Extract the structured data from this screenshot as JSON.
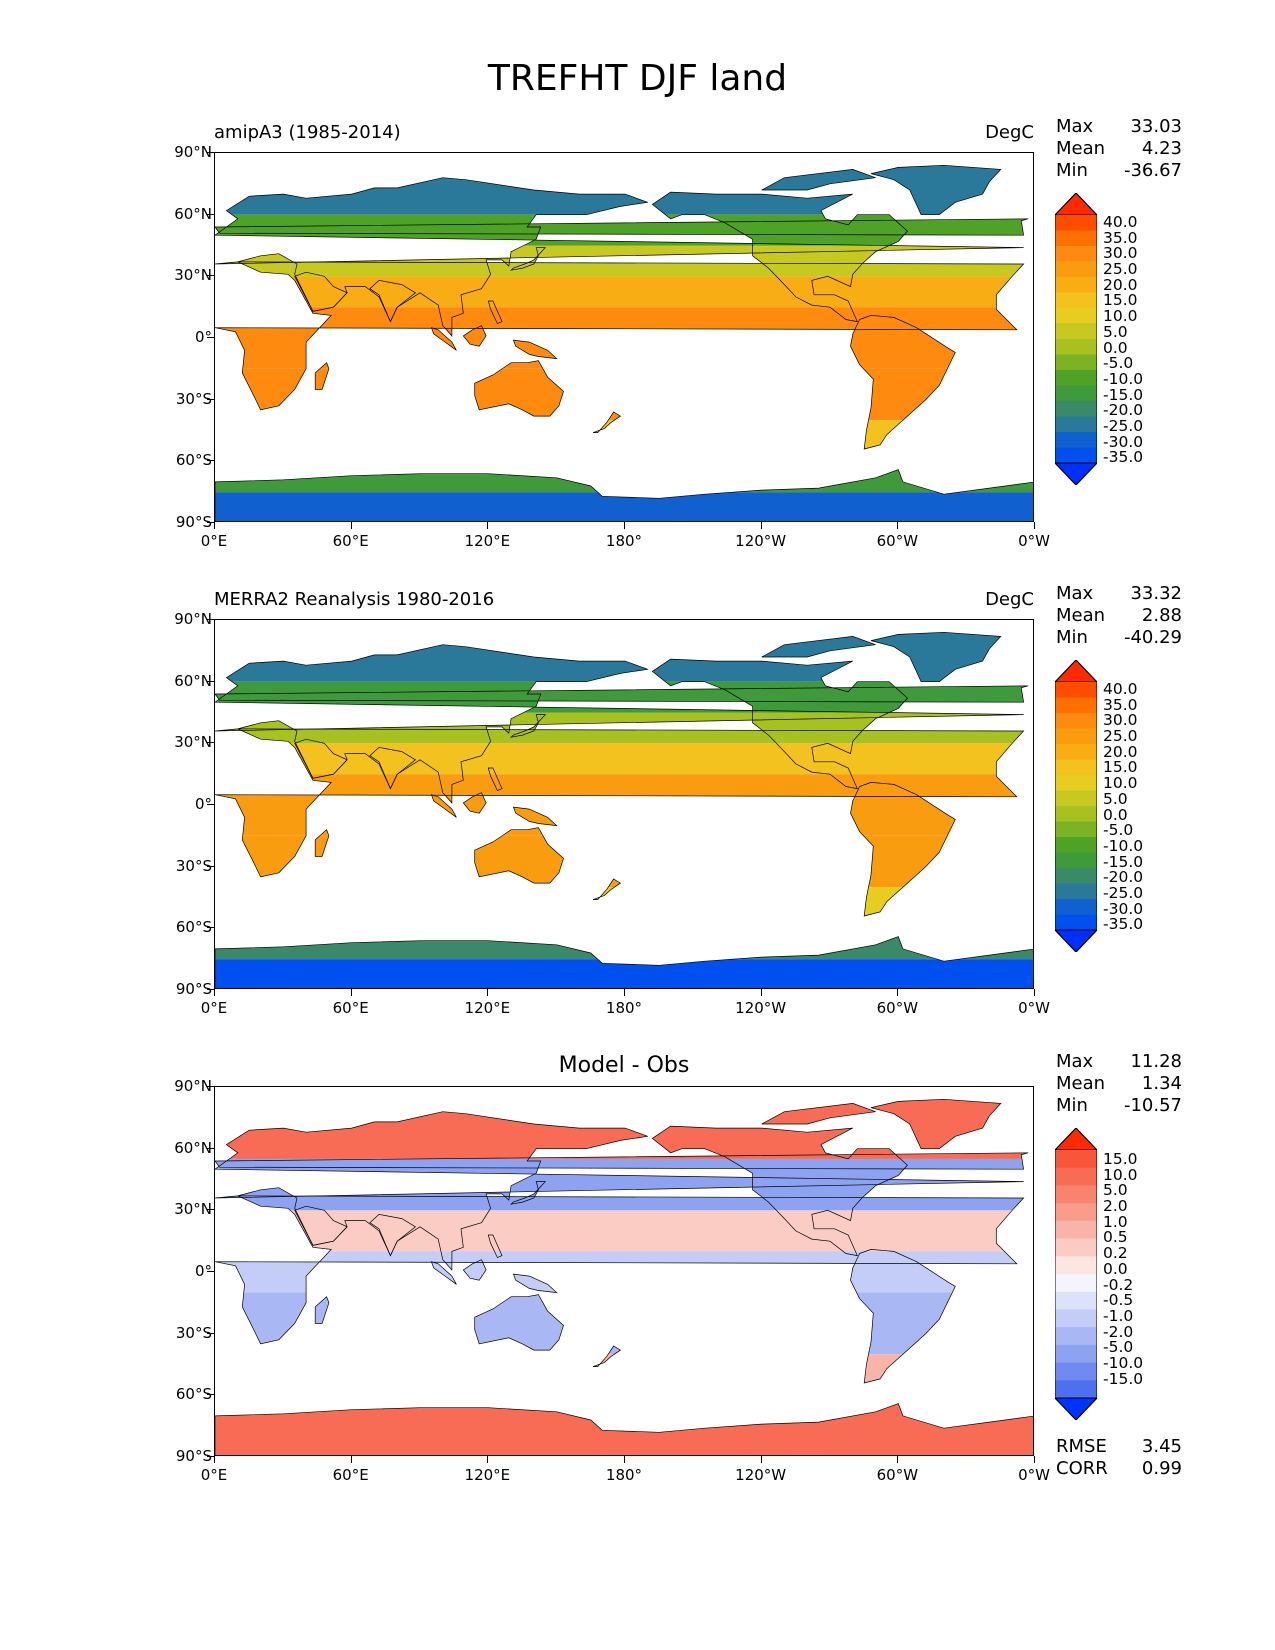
{
  "title": "TREFHT DJF land",
  "y_ticks": [
    "90°N",
    "60°N",
    "30°N",
    "0°",
    "30°S",
    "60°S",
    "90°S"
  ],
  "x_ticks": [
    "0°E",
    "60°E",
    "120°E",
    "180°",
    "120°W",
    "60°W",
    "0°W"
  ],
  "panels": [
    {
      "id": "test",
      "left_title": "amipA3 (1985-2014)",
      "right_title": "DegC",
      "center_title": "",
      "stats": {
        "max_label": "Max",
        "max": "33.03",
        "mean_label": "Mean",
        "mean": "4.23",
        "min_label": "Min",
        "min": "-36.67"
      },
      "colorbar": {
        "labels": [
          "40.0",
          "35.0",
          "30.0",
          "25.0",
          "20.0",
          "15.0",
          "10.0",
          "5.0",
          "0.0",
          "-5.0",
          "-10.0",
          "-15.0",
          "-20.0",
          "-25.0",
          "-30.0",
          "-35.0"
        ],
        "colors": [
          "#ff2a00",
          "#ff4d00",
          "#ff7000",
          "#ff8a10",
          "#f99c10",
          "#f8ad14",
          "#f4c21e",
          "#e6cd20",
          "#c7c820",
          "#a7c120",
          "#7cb325",
          "#4ea225",
          "#3f9a3c",
          "#3a8a6a",
          "#2a789a",
          "#1060d0",
          "#0050f0",
          "#0030ff"
        ],
        "extend_low_color": "#0030ff",
        "extend_high_color": "#ff2a00"
      }
    },
    {
      "id": "reference",
      "left_title": "MERRA2 Reanalysis 1980-2016",
      "right_title": "DegC",
      "center_title": "",
      "stats": {
        "max_label": "Max",
        "max": "33.32",
        "mean_label": "Mean",
        "mean": "2.88",
        "min_label": "Min",
        "min": "-40.29"
      },
      "colorbar": {
        "labels": [
          "40.0",
          "35.0",
          "30.0",
          "25.0",
          "20.0",
          "15.0",
          "10.0",
          "5.0",
          "0.0",
          "-5.0",
          "-10.0",
          "-15.0",
          "-20.0",
          "-25.0",
          "-30.0",
          "-35.0"
        ],
        "colors": [
          "#ff2a00",
          "#ff4d00",
          "#ff7000",
          "#ff8a10",
          "#f99c10",
          "#f8ad14",
          "#f4c21e",
          "#e6cd20",
          "#c7c820",
          "#a7c120",
          "#7cb325",
          "#4ea225",
          "#3f9a3c",
          "#3a8a6a",
          "#2a789a",
          "#1060d0",
          "#0050f0",
          "#0030ff"
        ],
        "extend_low_color": "#0030ff",
        "extend_high_color": "#ff2a00"
      }
    },
    {
      "id": "diff",
      "left_title": "",
      "right_title": "",
      "center_title": "Model - Obs",
      "stats": {
        "max_label": "Max",
        "max": "11.28",
        "mean_label": "Mean",
        "mean": "1.34",
        "min_label": "Min",
        "min": "-10.57"
      },
      "colorbar": {
        "labels": [
          "15.0",
          "10.0",
          "5.0",
          "2.0",
          "1.0",
          "0.5",
          "0.2",
          "0.0",
          "-0.2",
          "-0.5",
          "-1.0",
          "-2.0",
          "-5.0",
          "-10.0",
          "-15.0"
        ],
        "colors": [
          "#ff2a00",
          "#f8553a",
          "#f86c56",
          "#f88470",
          "#f89c8c",
          "#f8b4a8",
          "#fbccc4",
          "#fde6e2",
          "#f4f4fb",
          "#dde2fb",
          "#c3cdf8",
          "#a9b8f5",
          "#8ea2f2",
          "#708af0",
          "#4e6ff0",
          "#0033ff"
        ],
        "extend_low_color": "#0033ff",
        "extend_high_color": "#ff2a00"
      },
      "footer": {
        "rmse_label": "RMSE",
        "rmse": "3.45",
        "corr_label": "CORR",
        "corr": "0.99"
      }
    }
  ]
}
